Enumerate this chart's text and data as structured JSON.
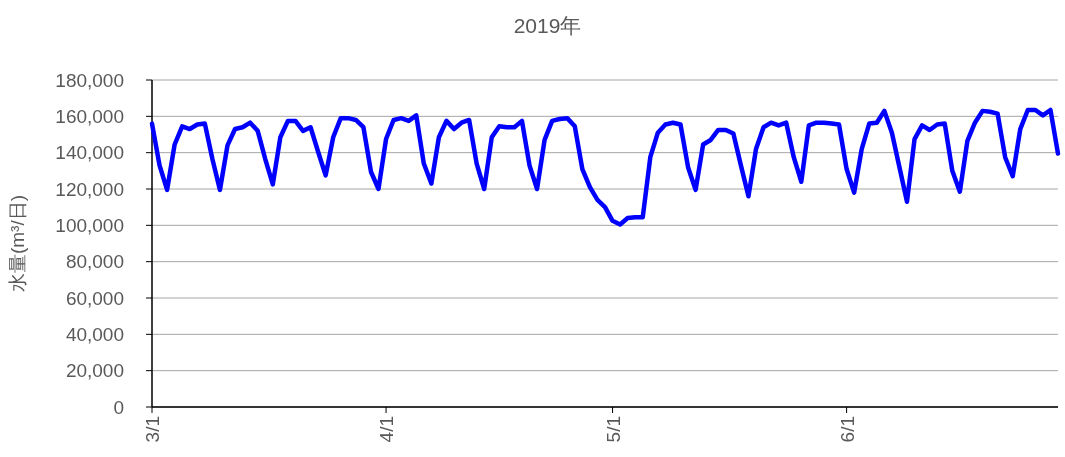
{
  "chart_data": {
    "type": "line",
    "title": "2019年",
    "ylabel": "水量(m³/日)",
    "x": [
      "2019-03-01",
      "2019-03-02",
      "2019-03-03",
      "2019-03-04",
      "2019-03-05",
      "2019-03-06",
      "2019-03-07",
      "2019-03-08",
      "2019-03-09",
      "2019-03-10",
      "2019-03-11",
      "2019-03-12",
      "2019-03-13",
      "2019-03-14",
      "2019-03-15",
      "2019-03-16",
      "2019-03-17",
      "2019-03-18",
      "2019-03-19",
      "2019-03-20",
      "2019-03-21",
      "2019-03-22",
      "2019-03-23",
      "2019-03-24",
      "2019-03-25",
      "2019-03-26",
      "2019-03-27",
      "2019-03-28",
      "2019-03-29",
      "2019-03-30",
      "2019-03-31",
      "2019-04-01",
      "2019-04-02",
      "2019-04-03",
      "2019-04-04",
      "2019-04-05",
      "2019-04-06",
      "2019-04-07",
      "2019-04-08",
      "2019-04-09",
      "2019-04-10",
      "2019-04-11",
      "2019-04-12",
      "2019-04-13",
      "2019-04-14",
      "2019-04-15",
      "2019-04-16",
      "2019-04-17",
      "2019-04-18",
      "2019-04-19",
      "2019-04-20",
      "2019-04-21",
      "2019-04-22",
      "2019-04-23",
      "2019-04-24",
      "2019-04-25",
      "2019-04-26",
      "2019-04-27",
      "2019-04-28",
      "2019-04-29",
      "2019-04-30",
      "2019-05-01",
      "2019-05-02",
      "2019-05-03",
      "2019-05-04",
      "2019-05-05",
      "2019-05-06",
      "2019-05-07",
      "2019-05-08",
      "2019-05-09",
      "2019-05-10",
      "2019-05-11",
      "2019-05-12",
      "2019-05-13",
      "2019-05-14",
      "2019-05-15",
      "2019-05-16",
      "2019-05-17",
      "2019-05-18",
      "2019-05-19",
      "2019-05-20",
      "2019-05-21",
      "2019-05-22",
      "2019-05-23",
      "2019-05-24",
      "2019-05-25",
      "2019-05-26",
      "2019-05-27",
      "2019-05-28",
      "2019-05-29",
      "2019-05-30",
      "2019-05-31",
      "2019-06-01",
      "2019-06-02",
      "2019-06-03",
      "2019-06-04",
      "2019-06-05",
      "2019-06-06",
      "2019-06-07",
      "2019-06-08",
      "2019-06-09",
      "2019-06-10",
      "2019-06-11",
      "2019-06-12",
      "2019-06-13",
      "2019-06-14",
      "2019-06-15",
      "2019-06-16",
      "2019-06-17",
      "2019-06-18",
      "2019-06-19",
      "2019-06-20",
      "2019-06-21",
      "2019-06-22",
      "2019-06-23",
      "2019-06-24",
      "2019-06-25",
      "2019-06-26",
      "2019-06-27",
      "2019-06-28",
      "2019-06-29"
    ],
    "series": [
      {
        "color": "#0000ff",
        "values": [
          156000,
          133000,
          119500,
          144500,
          154500,
          153000,
          155500,
          156000,
          136500,
          119500,
          144000,
          153000,
          154000,
          156500,
          152000,
          136500,
          122500,
          148500,
          157500,
          157500,
          152000,
          154000,
          140500,
          127500,
          148500,
          159000,
          159000,
          158000,
          154000,
          129500,
          120000,
          147500,
          158000,
          159000,
          157500,
          160500,
          134000,
          123000,
          148500,
          157500,
          153000,
          156500,
          158000,
          134000,
          120000,
          148500,
          154500,
          154000,
          154000,
          157500,
          133000,
          120000,
          147000,
          157500,
          158500,
          159000,
          154500,
          131000,
          121000,
          114000,
          110000,
          102500,
          100500,
          104000,
          104500,
          104500,
          137500,
          151000,
          155500,
          156500,
          155500,
          132000,
          119500,
          144500,
          147000,
          152500,
          152500,
          150500,
          133000,
          116000,
          142000,
          154000,
          156500,
          155000,
          156500,
          137500,
          124000,
          155000,
          156500,
          156500,
          156000,
          155500,
          131000,
          118000,
          142000,
          156000,
          156500,
          163000,
          151000,
          132000,
          113000,
          147500,
          155000,
          152500,
          155500,
          156000,
          130000,
          118500,
          146500,
          156500,
          163000,
          162500,
          161500,
          137500,
          127000,
          153000,
          163500,
          163500,
          160500,
          163500,
          139500
        ]
      }
    ],
    "xlim": [
      "2019-03-01",
      "2019-06-29"
    ],
    "xticks": [
      {
        "value": "2019-03-01",
        "label": "3/1"
      },
      {
        "value": "2019-04-01",
        "label": "4/1"
      },
      {
        "value": "2019-05-01",
        "label": "5/1"
      },
      {
        "value": "2019-06-01",
        "label": "6/1"
      }
    ],
    "ylim": [
      0,
      180000
    ],
    "yticks": [
      0,
      {
        "value": 20000,
        "label": "20,000"
      },
      {
        "value": 40000,
        "label": "40,000"
      },
      {
        "value": 60000,
        "label": "60,000"
      },
      {
        "value": 80000,
        "label": "80,000"
      },
      {
        "value": 100000,
        "label": "100,000"
      },
      {
        "value": 120000,
        "label": "120,000"
      },
      {
        "value": 140000,
        "label": "140,000"
      },
      {
        "value": 160000,
        "label": "160,000"
      },
      {
        "value": 180000,
        "label": "180,000"
      }
    ],
    "grid": "y",
    "line_style": "solid"
  }
}
